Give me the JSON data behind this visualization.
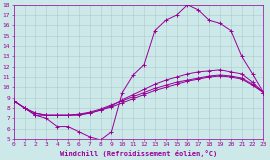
{
  "xlabel": "Windchill (Refroidissement éolien,°C)",
  "bg_color": "#cce8e8",
  "line_color": "#990099",
  "grid_color": "#aacccc",
  "xlim": [
    0,
    23
  ],
  "ylim": [
    5,
    18
  ],
  "xticks": [
    0,
    1,
    2,
    3,
    4,
    5,
    6,
    7,
    8,
    9,
    10,
    11,
    12,
    13,
    14,
    15,
    16,
    17,
    18,
    19,
    20,
    21,
    22,
    23
  ],
  "yticks": [
    5,
    6,
    7,
    8,
    9,
    10,
    11,
    12,
    13,
    14,
    15,
    16,
    17,
    18
  ],
  "curve1_x": [
    0,
    1,
    2,
    3,
    4,
    5,
    6,
    7,
    8,
    9,
    10,
    11,
    12,
    13,
    14,
    15,
    16,
    17,
    18,
    19,
    20,
    21,
    22,
    23
  ],
  "curve1_y": [
    8.7,
    8.0,
    7.3,
    7.0,
    6.2,
    6.2,
    5.7,
    5.2,
    4.9,
    5.7,
    9.5,
    11.2,
    12.2,
    15.5,
    16.5,
    17.0,
    18.0,
    17.5,
    16.5,
    16.2,
    15.5,
    13.0,
    11.3,
    9.5
  ],
  "curve2_x": [
    0,
    1,
    2,
    3,
    4,
    5,
    6,
    7,
    8,
    9,
    10,
    11,
    12,
    13,
    14,
    15,
    16,
    17,
    18,
    19,
    20,
    21,
    22,
    23
  ],
  "curve2_y": [
    8.7,
    8.0,
    7.3,
    7.3,
    7.3,
    7.3,
    7.3,
    7.5,
    7.8,
    8.2,
    8.8,
    9.3,
    9.8,
    10.3,
    10.7,
    11.0,
    11.3,
    11.5,
    11.6,
    11.7,
    11.5,
    11.3,
    10.5,
    9.5
  ],
  "curve3_x": [
    0,
    1,
    2,
    3,
    4,
    5,
    6,
    7,
    8,
    9,
    10,
    11,
    12,
    13,
    14,
    15,
    16,
    17,
    18,
    19,
    20,
    21,
    22,
    23
  ],
  "curve3_y": [
    8.7,
    8.0,
    7.5,
    7.3,
    7.3,
    7.3,
    7.4,
    7.5,
    7.8,
    8.1,
    8.5,
    8.9,
    9.3,
    9.7,
    10.0,
    10.3,
    10.6,
    10.8,
    11.0,
    11.1,
    11.0,
    10.8,
    10.2,
    9.5
  ],
  "curve4_x": [
    0,
    1,
    2,
    3,
    4,
    5,
    6,
    7,
    8,
    9,
    10,
    11,
    12,
    13,
    14,
    15,
    16,
    17,
    18,
    19,
    20,
    21,
    22,
    23
  ],
  "curve4_y": [
    8.7,
    8.0,
    7.5,
    7.3,
    7.3,
    7.3,
    7.4,
    7.6,
    7.9,
    8.3,
    8.7,
    9.1,
    9.5,
    9.9,
    10.2,
    10.5,
    10.7,
    10.9,
    11.1,
    11.2,
    11.1,
    10.9,
    10.3,
    9.5
  ]
}
